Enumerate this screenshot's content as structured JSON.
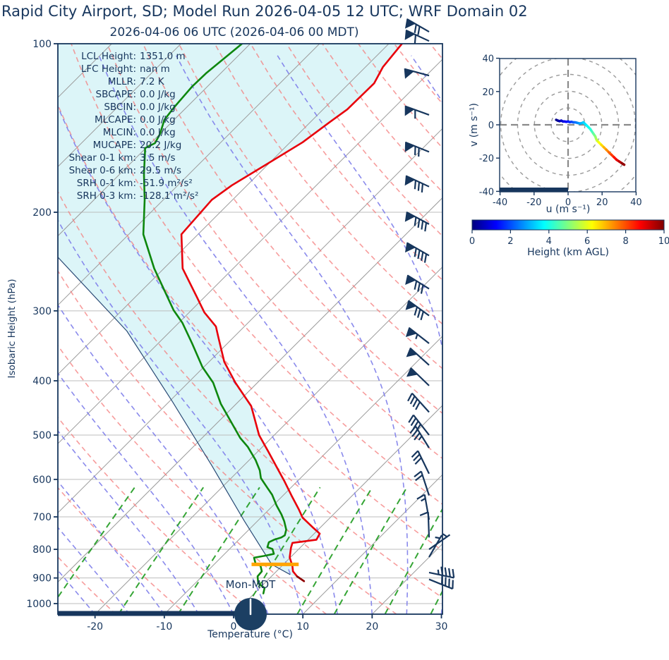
{
  "title": "Rapid City Airport, SD; Model Run 2026-04-05 12 UTC; WRF Domain 02",
  "subtitle": "2026-04-06 06 UTC  (2026-04-06 00 MDT)",
  "clock_label": "Mon-MDT",
  "skewt": {
    "xlabel": "Temperature (°C)",
    "ylabel": "Isobaric Height (hPa)",
    "pressure_ticks": [
      100,
      200,
      300,
      400,
      500,
      600,
      700,
      800,
      900,
      1000
    ],
    "temp_ticks": [
      -20,
      -10,
      0,
      10,
      20,
      30
    ],
    "stats": [
      {
        "label": "LCL Height:",
        "value": "1351.0 m"
      },
      {
        "label": "LFC Height:",
        "value": "nan m"
      },
      {
        "label": "MLLR:",
        "value": "7.2 K"
      },
      {
        "label": "SBCAPE:",
        "value": "0.0 J/kg"
      },
      {
        "label": "SBCIN:",
        "value": "0.0 J/kg"
      },
      {
        "label": "MLCAPE:",
        "value": "0.0 J/kg"
      },
      {
        "label": "MLCIN:",
        "value": "0.0 J/kg"
      },
      {
        "label": "MUCAPE:",
        "value": "20.2 J/kg"
      },
      {
        "label": "Shear 0-1 km:",
        "value": "3.5 m/s"
      },
      {
        "label": "Shear 0-6 km:",
        "value": "29.5 m/s"
      },
      {
        "label": "SRH 0-1 km:",
        "value": "-51.9 m²/s²"
      },
      {
        "label": "SRH 0-3 km:",
        "value": "-128.1 m²/s²"
      }
    ]
  },
  "hodograph": {
    "xlabel": "u (m s⁻¹)",
    "ylabel": "v (m s⁻¹)",
    "xticks": [
      -40,
      -20,
      0,
      20,
      40
    ],
    "yticks": [
      -40,
      -20,
      0,
      20,
      40
    ],
    "ring_radii": [
      10,
      20,
      30,
      40,
      50
    ]
  },
  "colorbar": {
    "label": "Height (km AGL)",
    "min": 0,
    "max": 10,
    "ticks": [
      0,
      2,
      4,
      6,
      8,
      10
    ]
  },
  "colors": {
    "text": "#17365d",
    "spine": "#17365d",
    "temperature": "#e8000b",
    "temperature_tip": "#8b0000",
    "dewpoint": "#0e870e",
    "parcel": "#2a4a75",
    "shade": "#dcf5f8",
    "isotherm": "#9b9b9b",
    "gridline": "#bdbdbd",
    "dry_adiabat": "#f47c7c",
    "moist_adiabat": "#7d7dea",
    "mixing_line": "#1f9b1f",
    "barb": "#17365d",
    "lcl": "#ffa500",
    "ring": "#9a9a9a",
    "crosshair": "#8a8a8a"
  },
  "chart_data": {
    "type": "skewt-logp-sounding with hodograph",
    "pressure_range_hpa": [
      100,
      1045
    ],
    "temp_axis_range_c": [
      -25.4,
      30.2
    ],
    "skew_deg": 45,
    "series": [
      {
        "name": "temperature",
        "units": "hPa,degC",
        "points": [
          [
            100,
            -58.1
          ],
          [
            110,
            -57.5
          ],
          [
            117.7,
            -56.4
          ],
          [
            131,
            -56.5
          ],
          [
            138,
            -57.2
          ],
          [
            150,
            -58.2
          ],
          [
            164,
            -60.2
          ],
          [
            179,
            -62.2
          ],
          [
            190,
            -63.0
          ],
          [
            219,
            -62.4
          ],
          [
            252,
            -57.3
          ],
          [
            283,
            -51.2
          ],
          [
            302,
            -47.8
          ],
          [
            320,
            -44.1
          ],
          [
            336,
            -42.0
          ],
          [
            370,
            -37.8
          ],
          [
            403,
            -33.2
          ],
          [
            444,
            -27.5
          ],
          [
            500,
            -22.2
          ],
          [
            535,
            -18.5
          ],
          [
            578,
            -14.3
          ],
          [
            603,
            -12.0
          ],
          [
            641,
            -8.8
          ],
          [
            679,
            -5.7
          ],
          [
            702,
            -4.0
          ],
          [
            733,
            -0.9
          ],
          [
            750,
            0.8
          ],
          [
            769,
            1.2
          ],
          [
            779,
            -1.8
          ],
          [
            795,
            -1.3
          ],
          [
            827,
            -0.1
          ],
          [
            856,
            1.5
          ],
          [
            876,
            2.4
          ],
          [
            894,
            3.7
          ],
          [
            912,
            5.4
          ]
        ]
      },
      {
        "name": "dewpoint",
        "units": "hPa,degC",
        "points": [
          [
            100,
            -81.2
          ],
          [
            112.7,
            -82.1
          ],
          [
            119.4,
            -82.2
          ],
          [
            130,
            -81.8
          ],
          [
            136.8,
            -81.4
          ],
          [
            144.9,
            -80.0
          ],
          [
            150.5,
            -79.4
          ],
          [
            153.6,
            -80.1
          ],
          [
            171,
            -76.5
          ],
          [
            190,
            -72.7
          ],
          [
            219,
            -67.9
          ],
          [
            252,
            -61.4
          ],
          [
            299,
            -52.6
          ],
          [
            315,
            -49.5
          ],
          [
            343,
            -45.1
          ],
          [
            378,
            -40.2
          ],
          [
            403,
            -36.4
          ],
          [
            440,
            -32.2
          ],
          [
            506,
            -24.5
          ],
          [
            525,
            -22.1
          ],
          [
            554,
            -19.1
          ],
          [
            578,
            -17.0
          ],
          [
            597,
            -15.7
          ],
          [
            622,
            -13.3
          ],
          [
            639,
            -11.7
          ],
          [
            668,
            -9.5
          ],
          [
            693,
            -7.5
          ],
          [
            713,
            -6.1
          ],
          [
            738,
            -4.6
          ],
          [
            755,
            -4.0
          ],
          [
            762,
            -4.2
          ],
          [
            769,
            -4.9
          ],
          [
            777,
            -5.3
          ],
          [
            793,
            -4.8
          ],
          [
            799,
            -3.8
          ],
          [
            815,
            -2.9
          ],
          [
            822,
            -4.0
          ],
          [
            828,
            -5.2
          ],
          [
            849,
            -4.1
          ],
          [
            856,
            -3.1
          ],
          [
            876,
            -2.1
          ],
          [
            894,
            -2.0
          ],
          [
            920,
            -0.9
          ],
          [
            938,
            0.7
          ],
          [
            959,
            1.3
          ]
        ]
      },
      {
        "name": "parcel_profile",
        "units": "hPa,degC",
        "points": [
          [
            887,
            2.4
          ],
          [
            851,
            -1.7
          ],
          [
            712,
            -11.9
          ],
          [
            566,
            -24.7
          ],
          [
            436,
            -39.5
          ],
          [
            326,
            -56.3
          ],
          [
            240,
            -77.1
          ],
          [
            224,
            -79.6
          ]
        ]
      },
      {
        "name": "temperature_surface_tip",
        "units": "hPa,degC",
        "points": [
          [
            894,
            3.7
          ],
          [
            912,
            5.4
          ]
        ]
      }
    ],
    "lcl_marker": {
      "pressure_hpa": 851,
      "t_min_c": -4.6,
      "t_max_c": 2.2
    },
    "wind_barbs_p_angle_pen_full_half": [
      [
        95.2,
        150,
        1,
        2,
        0
      ],
      [
        98.9,
        155,
        1,
        1,
        0
      ],
      [
        114,
        165,
        1,
        0,
        0
      ],
      [
        134,
        160,
        1,
        1,
        0
      ],
      [
        156,
        158,
        1,
        2,
        0
      ],
      [
        180,
        155,
        1,
        3,
        0
      ],
      [
        210,
        152,
        1,
        4,
        0
      ],
      [
        239,
        150,
        1,
        4,
        0
      ],
      [
        274,
        148,
        1,
        3,
        0
      ],
      [
        306,
        144,
        1,
        3,
        0
      ],
      [
        343,
        142,
        1,
        0,
        1
      ],
      [
        375,
        138,
        1,
        0,
        0
      ],
      [
        408,
        136,
        1,
        0,
        0
      ],
      [
        455,
        132,
        0,
        4,
        0
      ],
      [
        500,
        128,
        0,
        4,
        0
      ],
      [
        527,
        122,
        0,
        3,
        1
      ],
      [
        586,
        116,
        0,
        3,
        0
      ],
      [
        641,
        108,
        0,
        2,
        0
      ],
      [
        708,
        100,
        0,
        1,
        1
      ],
      [
        762,
        92,
        0,
        1,
        0
      ],
      [
        800,
        35,
        0,
        0,
        1
      ],
      [
        826,
        60,
        0,
        0,
        1
      ],
      [
        880,
        -12,
        0,
        4,
        1
      ],
      [
        905,
        -22,
        0,
        4,
        0
      ]
    ],
    "hodograph_trace_u_v_heightkm": [
      [
        -7,
        3,
        0
      ],
      [
        -6,
        2.5,
        0.2
      ],
      [
        -5,
        2.2,
        0.4
      ],
      [
        -4,
        2.5,
        0.6
      ],
      [
        -3,
        2,
        0.8
      ],
      [
        -2,
        2,
        1.0
      ],
      [
        -1,
        1.8,
        1.2
      ],
      [
        0,
        2,
        1.4
      ],
      [
        1,
        1.6,
        1.6
      ],
      [
        2,
        1.8,
        1.8
      ],
      [
        3,
        1.5,
        2.0
      ],
      [
        4,
        1.5,
        2.2
      ],
      [
        5,
        1.3,
        2.4
      ],
      [
        6,
        1,
        2.6
      ],
      [
        7,
        0.8,
        2.8
      ],
      [
        8,
        1,
        3.0
      ],
      [
        9,
        1.5,
        3.2
      ],
      [
        10,
        0.5,
        3.4
      ],
      [
        11,
        -0.5,
        3.6
      ],
      [
        12,
        -1.5,
        3.8
      ],
      [
        13,
        -2.5,
        4.0
      ],
      [
        14,
        -4,
        4.3
      ],
      [
        15,
        -5.5,
        4.6
      ],
      [
        16,
        -7,
        5.0
      ],
      [
        16.5,
        -8.5,
        5.3
      ],
      [
        17,
        -9.5,
        5.6
      ],
      [
        18,
        -10.5,
        6.0
      ],
      [
        19.5,
        -12,
        6.4
      ],
      [
        21,
        -13.5,
        6.8
      ],
      [
        22.5,
        -15,
        7.2
      ],
      [
        24,
        -16.5,
        7.6
      ],
      [
        25.5,
        -18,
        8.0
      ],
      [
        27,
        -19.5,
        8.4
      ],
      [
        28.5,
        -21,
        8.8
      ],
      [
        30,
        -22,
        9.2
      ],
      [
        31.5,
        -23,
        9.6
      ],
      [
        33,
        -24,
        10
      ]
    ],
    "background_lines": {
      "isotherms_c": {
        "start": -110,
        "end": 30,
        "step": 10
      },
      "dry_adiabats_theta_k": {
        "start": 243,
        "end": 443,
        "step": 10
      },
      "moist_adiabats_start_c": {
        "start": -70,
        "end": 40,
        "step": 5
      },
      "mixing_ratios_g_kg": [
        0.4,
        1,
        2,
        4,
        7,
        10,
        16,
        24,
        32
      ]
    }
  }
}
